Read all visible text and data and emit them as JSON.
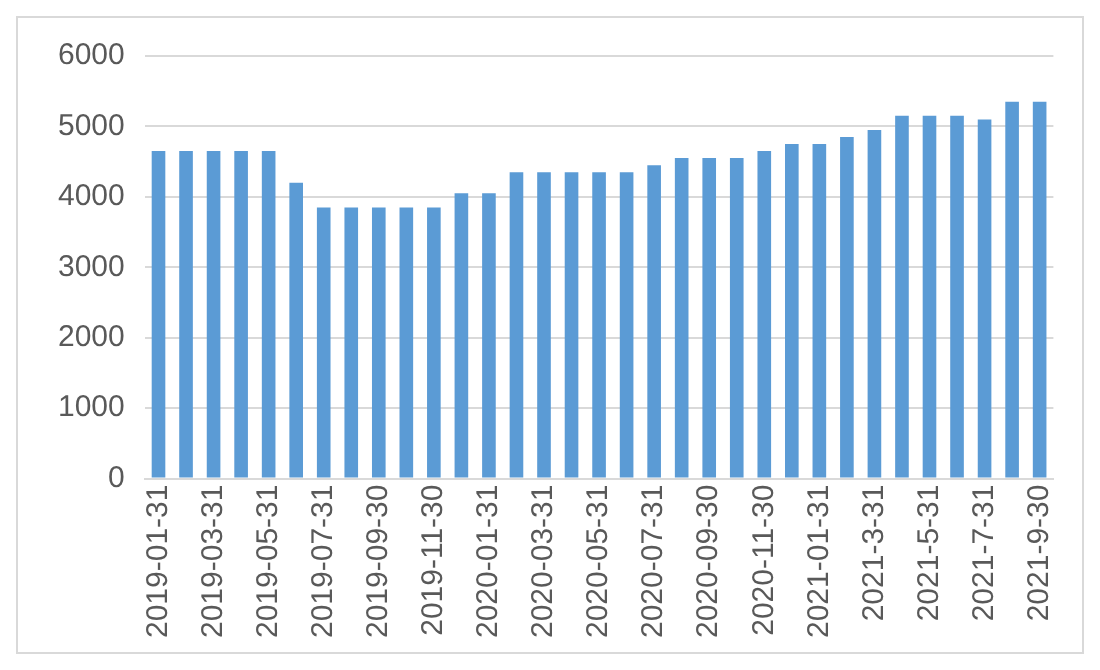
{
  "chart_data": {
    "type": "bar",
    "categories": [
      "2019-01-31",
      null,
      "2019-03-31",
      null,
      "2019-05-31",
      null,
      "2019-07-31",
      null,
      "2019-09-30",
      null,
      "2019-11-30",
      null,
      "2020-01-31",
      null,
      "2020-03-31",
      null,
      "2020-05-31",
      null,
      "2020-07-31",
      null,
      "2020-09-30",
      null,
      "2020-11-30",
      null,
      "2021-01-31",
      null,
      "2021-3-31",
      null,
      "2021-5-31",
      null,
      "2021-7-31",
      null,
      "2021-9-30"
    ],
    "values": [
      4650,
      4650,
      4650,
      4650,
      4650,
      4200,
      3850,
      3850,
      3850,
      3850,
      3850,
      4050,
      4050,
      4350,
      4350,
      4350,
      4350,
      4350,
      4450,
      4550,
      4550,
      4550,
      4650,
      4750,
      4750,
      4850,
      4950,
      5150,
      5150,
      5150,
      5100,
      5350,
      5350
    ],
    "color": "#5b9bd5",
    "ylim": [
      0,
      6000
    ],
    "yticks": [
      0,
      1000,
      2000,
      3000,
      4000,
      5000,
      6000
    ],
    "grid": "y"
  }
}
